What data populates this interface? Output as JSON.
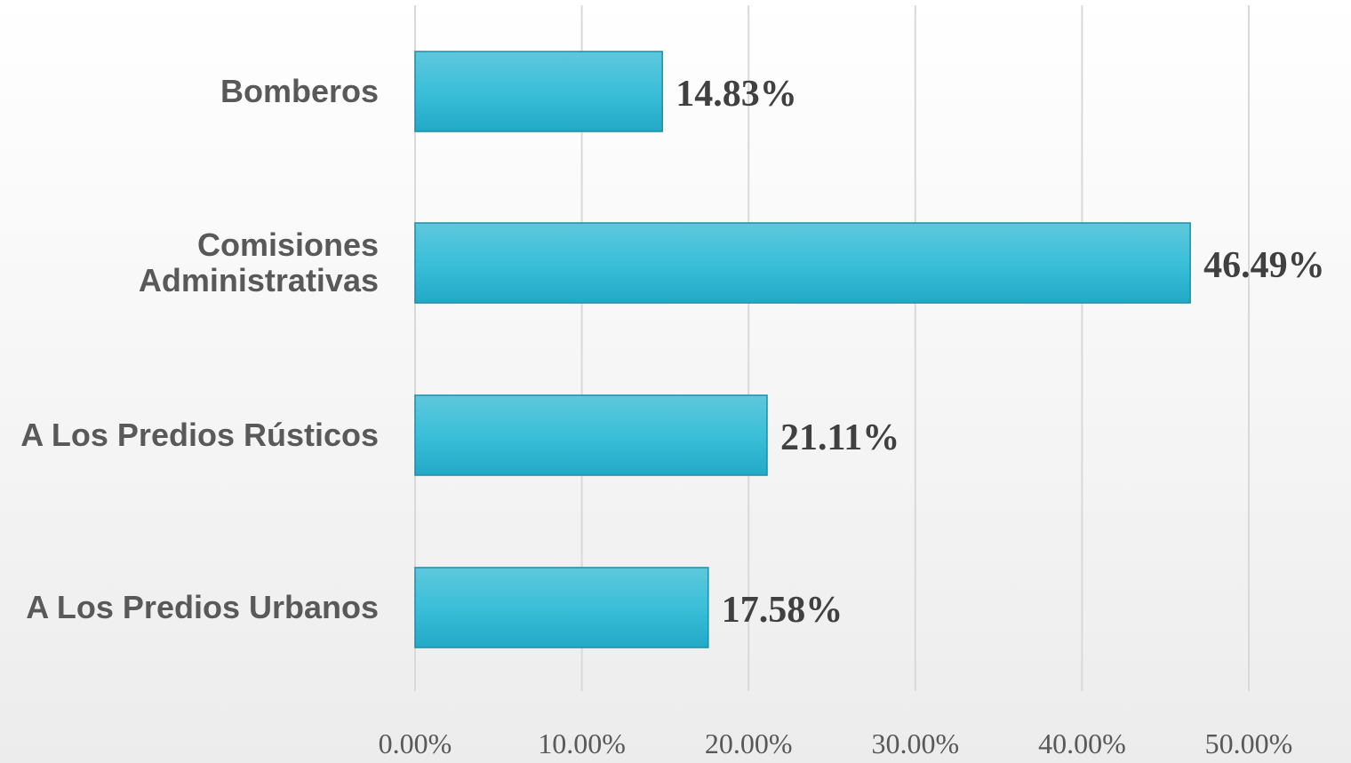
{
  "chart_data": {
    "type": "bar",
    "orientation": "horizontal",
    "categories": [
      "Bomberos",
      "Comisiones Administrativas",
      "A Los Predios Rústicos",
      "A Los Predios Urbanos"
    ],
    "category_lines": [
      [
        "Bomberos"
      ],
      [
        "Comisiones",
        "Administrativas"
      ],
      [
        "A Los Predios Rústicos"
      ],
      [
        "A Los Predios Urbanos"
      ]
    ],
    "values": [
      14.83,
      46.49,
      21.11,
      17.58
    ],
    "data_labels": [
      "14.83%",
      "46.49%",
      "21.11%",
      "17.58%"
    ],
    "xlim": [
      0,
      50
    ],
    "x_ticks": [
      0,
      10,
      20,
      30,
      40,
      50
    ],
    "x_tick_labels": [
      "0.00%",
      "10.00%",
      "20.00%",
      "30.00%",
      "40.00%",
      "50.00%"
    ],
    "title": "",
    "xlabel": "",
    "ylabel": "",
    "grid": "vertical",
    "legend": "none",
    "colors": {
      "bar_top": "#5ec8dc",
      "bar_mid": "#3bbfd9",
      "bar_bottom": "#22a9c6",
      "bar_border": "#1f8ea8",
      "gridline": "#d9d9d9"
    }
  }
}
